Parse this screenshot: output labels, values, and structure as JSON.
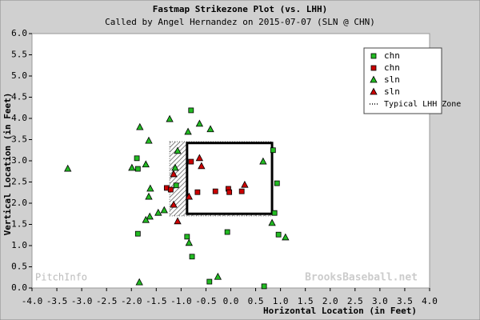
{
  "chart_data": {
    "type": "scatter",
    "title": "Fastmap Strikezone Plot (vs. LHH)",
    "subtitle": "Called by Angel Hernandez on 2015-07-07 (SLN @ CHN)",
    "x_label": "Horizontal Location (in Feet)",
    "y_label": "Vertical Location (in Feet)",
    "xlim": [
      -4.0,
      4.0
    ],
    "ylim": [
      0.0,
      6.0
    ],
    "xticks": [
      {
        "value": -4,
        "label": "-4.0"
      },
      {
        "value": -3.5,
        "label": "-3.5"
      },
      {
        "value": -3,
        "label": "-3.0"
      },
      {
        "value": -2.5,
        "label": "-2.5"
      },
      {
        "value": -2,
        "label": "-2.0"
      },
      {
        "value": -1.5,
        "label": "-1.5"
      },
      {
        "value": -1,
        "label": "-1.0"
      },
      {
        "value": -0.5,
        "label": "-0.5"
      },
      {
        "value": 0,
        "label": "0.0"
      },
      {
        "value": 0.5,
        "label": "0.5"
      },
      {
        "value": 1,
        "label": "1.0"
      },
      {
        "value": 1.5,
        "label": "1.5"
      },
      {
        "value": 2,
        "label": "2.0"
      },
      {
        "value": 2.5,
        "label": "2.5"
      },
      {
        "value": 3,
        "label": "3.0"
      },
      {
        "value": 3.5,
        "label": "3.5"
      },
      {
        "value": 4,
        "label": "4.0"
      }
    ],
    "yticks": [
      {
        "value": 0,
        "label": "0.0"
      },
      {
        "value": 0.5,
        "label": "0.5"
      },
      {
        "value": 1,
        "label": "1.0"
      },
      {
        "value": 1.5,
        "label": "1.5"
      },
      {
        "value": 2,
        "label": "2.0"
      },
      {
        "value": 2.5,
        "label": "2.5"
      },
      {
        "value": 3,
        "label": "3.0"
      },
      {
        "value": 3.5,
        "label": "3.5"
      },
      {
        "value": 4,
        "label": "4.0"
      },
      {
        "value": 4.5,
        "label": "4.5"
      },
      {
        "value": 5,
        "label": "5.0"
      },
      {
        "value": 5.5,
        "label": "5.5"
      },
      {
        "value": 6,
        "label": "6.0"
      }
    ],
    "typical_zone": {
      "xlim": [
        -1.23,
        0.83
      ],
      "ylim": [
        1.7,
        3.45
      ]
    },
    "called_zone": {
      "xlim": [
        -0.88,
        0.83
      ],
      "ylim": [
        1.75,
        3.42
      ]
    },
    "zone_legend": "Typical LHH Zone",
    "watermarks": [
      "PitchInfo",
      "BrooksBaseball.net"
    ],
    "series": [
      {
        "name": "chn",
        "marker": "square",
        "color": "#22bb22",
        "x": [
          -1.89,
          -1.87,
          -1.87,
          -0.8,
          -0.88,
          -0.78,
          -0.43,
          -0.07,
          0.85,
          0.93,
          0.88,
          0.96,
          -1.1,
          0.67
        ],
        "y": [
          3.06,
          2.81,
          1.28,
          4.19,
          1.21,
          0.74,
          0.15,
          1.32,
          3.25,
          2.47,
          1.77,
          1.26,
          2.42,
          0.04
        ]
      },
      {
        "name": "chn",
        "marker": "square",
        "color": "#cc0000",
        "x": [
          -0.8,
          -0.67,
          -0.31,
          -0.05,
          -0.03,
          0.22,
          -1.29,
          -1.21
        ],
        "y": [
          2.98,
          2.26,
          2.28,
          2.34,
          2.26,
          2.28,
          2.36,
          2.32
        ]
      },
      {
        "name": "sln",
        "marker": "triangle",
        "color": "#22bb22",
        "x": [
          -3.28,
          -1.99,
          -1.83,
          -1.71,
          -1.65,
          -1.62,
          -1.65,
          -1.63,
          -1.71,
          -1.46,
          -1.34,
          -1.23,
          -1.12,
          -1.07,
          -0.86,
          -0.63,
          -0.41,
          -0.84,
          -0.26,
          -1.84,
          0.65,
          0.83,
          1.1
        ],
        "y": [
          2.81,
          2.83,
          3.79,
          2.91,
          3.47,
          2.34,
          2.15,
          1.68,
          1.6,
          1.77,
          1.83,
          3.98,
          2.83,
          3.23,
          3.68,
          3.87,
          3.74,
          1.06,
          0.26,
          0.13,
          2.98,
          1.53,
          1.19
        ]
      },
      {
        "name": "sln",
        "marker": "triangle",
        "color": "#cc0000",
        "x": [
          -0.63,
          -0.59,
          -0.84,
          -1.15,
          -1.07,
          0.28,
          -1.15
        ],
        "y": [
          3.06,
          2.87,
          2.15,
          1.96,
          1.57,
          2.43,
          2.68
        ]
      }
    ]
  }
}
